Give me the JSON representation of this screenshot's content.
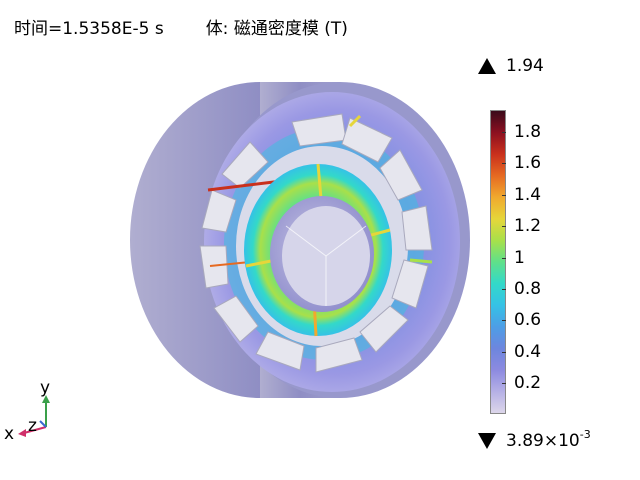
{
  "header": {
    "time_label": "时间=1.5358E-5 s",
    "quantity_label": "体: 磁通密度模 (T)"
  },
  "legend": {
    "max_value": "1.94",
    "min_value_base": "3.89×10",
    "min_value_exponent": "-3",
    "ticks": [
      "1.8",
      "1.6",
      "1.4",
      "1.2",
      "1",
      "0.8",
      "0.6",
      "0.4",
      "0.2"
    ],
    "colormap": [
      "#dcd6ea",
      "#b5b0e6",
      "#8c8ae0",
      "#6d86de",
      "#4d9ee6",
      "#35c2e6",
      "#33d9c9",
      "#5fe08a",
      "#a8e04a",
      "#e6d63a",
      "#f0a92e",
      "#e66a22",
      "#c9301c",
      "#8c1020",
      "#3a0a1a"
    ]
  },
  "axes": {
    "x_label": "x",
    "y_label": "y",
    "z_label": "z",
    "x_color": "#d0306a",
    "y_color": "#3aa04a",
    "z_color": "#3a6ad0"
  }
}
